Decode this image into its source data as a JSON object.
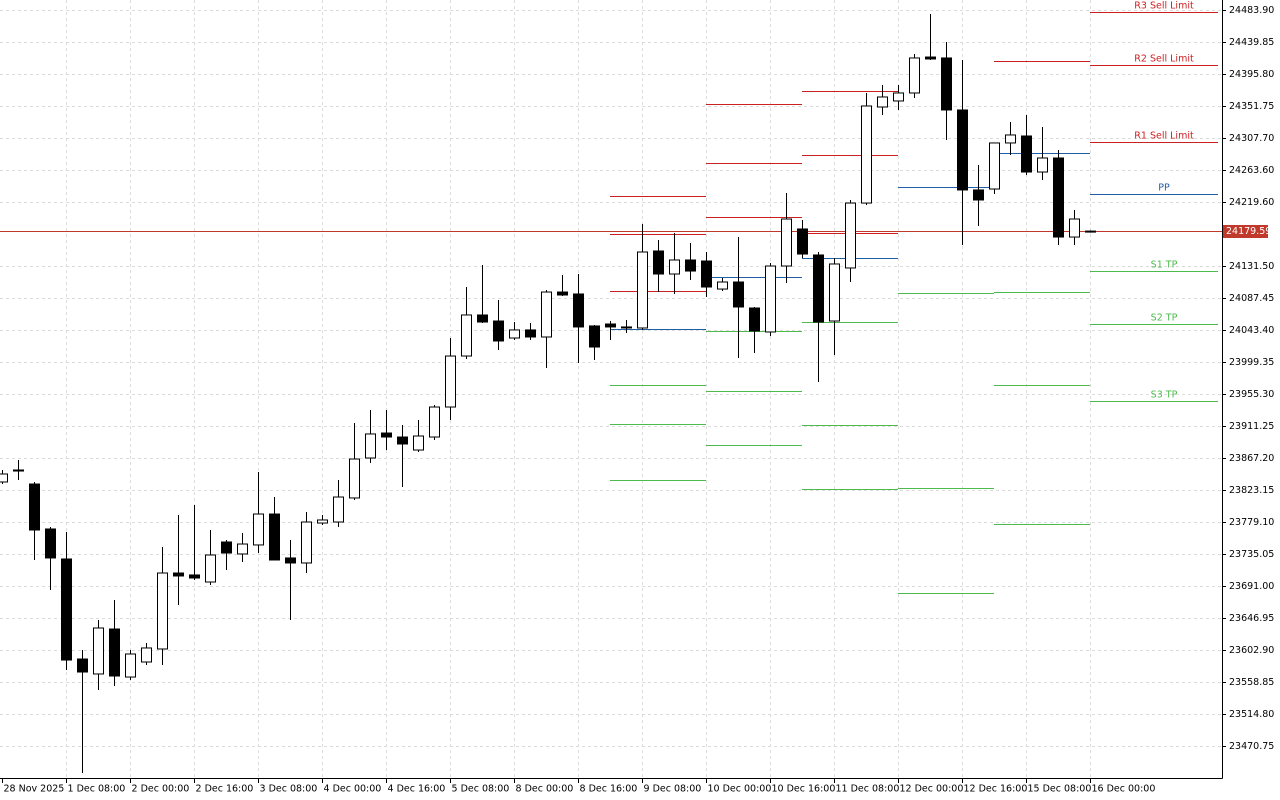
{
  "chart_data": {
    "type": "candlestick",
    "categories": [
      "28 Nov 2025",
      null,
      null,
      null,
      "1 Dec 08:00",
      null,
      null,
      null,
      "2 Dec 00:00",
      null,
      null,
      null,
      "2 Dec 16:00",
      null,
      null,
      null,
      "3 Dec 08:00",
      null,
      null,
      null,
      "4 Dec 00:00",
      null,
      null,
      null,
      "4 Dec 16:00",
      null,
      null,
      null,
      "5 Dec 08:00",
      null,
      null,
      null,
      "8 Dec 00:00",
      null,
      null,
      null,
      "8 Dec 16:00",
      null,
      null,
      null,
      "9 Dec 08:00",
      null,
      null,
      null,
      "10 Dec 00:00",
      null,
      null,
      null,
      "10 Dec 16:00",
      null,
      null,
      null,
      "11 Dec 08:00",
      null,
      null,
      null,
      "12 Dec 00:00",
      null,
      null,
      null,
      "12 Dec 16:00",
      null,
      null,
      null,
      "15 Dec 08:00",
      null,
      null,
      null,
      "16 Dec 00:00"
    ],
    "open": [
      23834.2,
      23850.7,
      23831.4,
      23769.5,
      23728.2,
      23590.5,
      23569.9,
      23631.8,
      23565.7,
      23586.4,
      23604.3,
      23708.9,
      23706.2,
      23696.5,
      23751.6,
      23735.1,
      23747.5,
      23790.1,
      23729.6,
      23722.7,
      23777.7,
      23779.1,
      23812.2,
      23867.2,
      23901.6,
      23896.1,
      23878.2,
      23896.1,
      23937.4,
      24007.6,
      24064.1,
      24055.8,
      24032.4,
      24043.5,
      24033.8,
      24095.7,
      24093.0,
      24049.0,
      24051.7,
      24047.6,
      24046.2,
      24152.2,
      24120.5,
      24139.8,
      24138.4,
      24099.8,
      24109.5,
      24073.7,
      24040.7,
      24131.5,
      24182.5,
      24146.7,
      24055.8,
      24128.8,
      24218.2,
      24350.4,
      24358.7,
      24369.7,
      24419.2,
      24417.9,
      24346.3,
      24236.2,
      24237.5,
      24300.9,
      24310.5,
      24260.9,
      24280.2,
      24171.4,
      24178.9
    ],
    "high": [
      23850.7,
      23864.5,
      23834.2,
      23772.2,
      23765.3,
      23602.9,
      23644.2,
      23671.7,
      23602.9,
      23612.5,
      23744.7,
      23788.8,
      23802.5,
      23768.1,
      23754.3,
      23764.0,
      23847.9,
      23813.5,
      23754.3,
      23792.9,
      23788.8,
      23836.9,
      23915.4,
      23933.3,
      23933.3,
      23912.7,
      23919.5,
      23940.2,
      24032.4,
      24102.6,
      24132.9,
      24084.8,
      24054.4,
      24053.1,
      24098.5,
      24119.1,
      24120.5,
      24050.3,
      24055.8,
      24057.2,
      24189.3,
      24167.3,
      24176.9,
      24163.2,
      24150.8,
      24115.0,
      24171.4,
      24075.1,
      24135.6,
      24232.0,
      24194.9,
      24150.8,
      24142.5,
      24222.4,
      24369.7,
      24380.7,
      24380.7,
      24423.4,
      24478.4,
      24439.9,
      24415.1,
      24270.6,
      24300.9,
      24329.8,
      24339.4,
      24322.9,
      24291.2,
      24208.6,
      24180.5
    ],
    "low": [
      23831.4,
      23836.9,
      23726.8,
      23685.5,
      23575.4,
      23433.6,
      23547.8,
      23553.3,
      23561.6,
      23582.3,
      23582.3,
      23664.9,
      23699.3,
      23692.4,
      23713.1,
      23724.1,
      23736.4,
      23726.8,
      23644.2,
      23708.9,
      23775.0,
      23772.2,
      23809.4,
      23860.3,
      23878.2,
      23827.3,
      23875.5,
      23892.0,
      23919.5,
      24003.5,
      24053.1,
      24015.9,
      24029.7,
      24029.7,
      23991.1,
      24090.2,
      23998.0,
      24002.1,
      24029.7,
      24039.3,
      24043.5,
      24095.7,
      24093.0,
      24112.2,
      24088.9,
      24097.1,
      24004.9,
      24011.8,
      24035.2,
      24108.1,
      24142.5,
      23971.8,
      24009.0,
      24109.5,
      24215.5,
      24339.4,
      24346.3,
      24362.8,
      24415.1,
      24305.0,
      24160.4,
      24186.6,
      24230.6,
      24284.3,
      24256.8,
      24249.9,
      24160.4,
      24160.4,
      24177.5
    ],
    "close": [
      23845.2,
      23849.3,
      23768.1,
      23729.6,
      23589.1,
      23572.6,
      23633.2,
      23567.1,
      23597.4,
      23605.7,
      23708.9,
      23704.8,
      23702.0,
      23733.7,
      23736.4,
      23748.8,
      23790.1,
      23726.8,
      23722.7,
      23779.1,
      23781.9,
      23813.5,
      23865.8,
      23900.3,
      23896.1,
      23886.5,
      23897.5,
      23937.4,
      24007.6,
      24064.1,
      24054.4,
      24028.3,
      24043.5,
      24033.8,
      24095.7,
      24091.6,
      24047.6,
      24020.0,
      24047.6,
      24046.2,
      24150.8,
      24120.5,
      24139.8,
      24124.6,
      24102.6,
      24109.5,
      24075.1,
      24042.1,
      24131.5,
      24196.2,
      24148.0,
      24054.4,
      24134.3,
      24218.2,
      24351.8,
      24364.2,
      24369.7,
      24417.9,
      24416.5,
      24346.3,
      24236.2,
      24222.4,
      24300.9,
      24311.9,
      24260.9,
      24280.2,
      24171.4,
      24196.2,
      24179.59
    ],
    "levels": [
      {
        "name": "R3 Sell Limit",
        "color": "#cc1f1f",
        "values": [
          null,
          null,
          null,
          null,
          null,
          null,
          null,
          null,
          null,
          null,
          null,
          null,
          null,
          null,
          null,
          null,
          null,
          null,
          null,
          null,
          null,
          null,
          null,
          null,
          null,
          null,
          null,
          null,
          null,
          null,
          null,
          null,
          null,
          null,
          null,
          null,
          null,
          null,
          24227.9,
          24227.9,
          24227.9,
          24227.9,
          24227.9,
          24227.9,
          24354.5,
          24354.5,
          24354.5,
          24354.5,
          24354.5,
          24354.5,
          24372.4,
          24372.4,
          24372.4,
          24372.4,
          24372.4,
          24372.4,
          null,
          null,
          null,
          null,
          null,
          null,
          null,
          null,
          null,
          null,
          null,
          null,
          24481.2
        ]
      },
      {
        "name": "R2 Sell Limit",
        "color": "#cc1f1f",
        "values": [
          null,
          null,
          null,
          null,
          null,
          null,
          null,
          null,
          null,
          null,
          null,
          null,
          null,
          null,
          null,
          null,
          null,
          null,
          null,
          null,
          null,
          null,
          null,
          null,
          null,
          null,
          null,
          null,
          null,
          null,
          null,
          null,
          null,
          null,
          null,
          null,
          null,
          null,
          24175.6,
          24175.6,
          24175.6,
          24175.6,
          24175.6,
          24175.6,
          24273.3,
          24273.3,
          24273.3,
          24273.3,
          24273.3,
          24273.3,
          24284.3,
          24284.3,
          24284.3,
          24284.3,
          24284.3,
          24284.3,
          null,
          null,
          null,
          null,
          null,
          null,
          null,
          null,
          null,
          null,
          null,
          null,
          24408.2
        ]
      },
      {
        "name": "R1 Sell Limit",
        "color": "#cc1f1f",
        "values": [
          null,
          null,
          null,
          null,
          null,
          null,
          null,
          null,
          null,
          null,
          null,
          null,
          null,
          null,
          null,
          null,
          null,
          null,
          null,
          null,
          null,
          null,
          null,
          null,
          null,
          null,
          null,
          null,
          null,
          null,
          null,
          null,
          null,
          null,
          null,
          null,
          null,
          null,
          24097.1,
          24097.1,
          24097.1,
          24097.1,
          24097.1,
          24097.1,
          24199.0,
          24199.0,
          24199.0,
          24199.0,
          24199.0,
          24199.0,
          24176.9,
          24176.9,
          24176.9,
          24176.9,
          24176.9,
          24176.9,
          null,
          null,
          null,
          null,
          null,
          null,
          24413.7,
          24413.7,
          24413.7,
          24413.7,
          24413.7,
          24413.7,
          24302.2
        ]
      },
      {
        "name": "PP",
        "color": "#1f5fa8",
        "values": [
          null,
          null,
          null,
          null,
          null,
          null,
          null,
          null,
          null,
          null,
          null,
          null,
          null,
          null,
          null,
          null,
          null,
          null,
          null,
          null,
          null,
          null,
          null,
          null,
          null,
          null,
          null,
          null,
          null,
          null,
          null,
          null,
          null,
          null,
          null,
          null,
          null,
          null,
          24044.8,
          24044.8,
          24044.8,
          24044.8,
          24044.8,
          24044.8,
          24116.4,
          24116.4,
          24116.4,
          24116.4,
          24116.4,
          24116.4,
          24142.5,
          24142.5,
          24142.5,
          24142.5,
          24142.5,
          24142.5,
          24240.3,
          24240.3,
          24240.3,
          24240.3,
          24240.3,
          24240.3,
          24287.1,
          24287.1,
          24287.1,
          24287.1,
          24287.1,
          24287.1,
          24230.6
        ]
      },
      {
        "name": "S1 TP",
        "color": "#4cbb4c",
        "values": [
          null,
          null,
          null,
          null,
          null,
          null,
          null,
          null,
          null,
          null,
          null,
          null,
          null,
          null,
          null,
          null,
          null,
          null,
          null,
          null,
          null,
          null,
          null,
          null,
          null,
          null,
          null,
          null,
          null,
          null,
          null,
          null,
          null,
          null,
          null,
          null,
          null,
          null,
          23967.7,
          23967.7,
          23967.7,
          23967.7,
          23967.7,
          23967.7,
          24042.1,
          24042.1,
          24042.1,
          24042.1,
          24042.1,
          24042.1,
          24054.4,
          24054.4,
          24054.4,
          24054.4,
          24054.4,
          24054.4,
          24094.3,
          24094.3,
          24094.3,
          24094.3,
          24094.3,
          24094.3,
          24095.7,
          24095.7,
          24095.7,
          24095.7,
          24095.7,
          24095.7,
          24124.6
        ]
      },
      {
        "name": "S2 TP",
        "color": "#4cbb4c",
        "values": [
          null,
          null,
          null,
          null,
          null,
          null,
          null,
          null,
          null,
          null,
          null,
          null,
          null,
          null,
          null,
          null,
          null,
          null,
          null,
          null,
          null,
          null,
          null,
          null,
          null,
          null,
          null,
          null,
          null,
          null,
          null,
          null,
          null,
          null,
          null,
          null,
          null,
          null,
          23914.0,
          23914.0,
          23914.0,
          23914.0,
          23914.0,
          23914.0,
          23959.4,
          23959.4,
          23959.4,
          23959.4,
          23959.4,
          23959.4,
          23912.7,
          23912.7,
          23912.7,
          23912.7,
          23912.7,
          23912.7,
          23825.9,
          23825.9,
          23825.9,
          23825.9,
          23825.9,
          23825.9,
          23967.7,
          23967.7,
          23967.7,
          23967.7,
          23967.7,
          23967.7,
          24051.7
        ]
      },
      {
        "name": "S3 TP",
        "color": "#4cbb4c",
        "values": [
          null,
          null,
          null,
          null,
          null,
          null,
          null,
          null,
          null,
          null,
          null,
          null,
          null,
          null,
          null,
          null,
          null,
          null,
          null,
          null,
          null,
          null,
          null,
          null,
          null,
          null,
          null,
          null,
          null,
          null,
          null,
          null,
          null,
          null,
          null,
          null,
          null,
          null,
          23836.9,
          23836.9,
          23836.9,
          23836.9,
          23836.9,
          23836.9,
          23885.1,
          23885.1,
          23885.1,
          23885.1,
          23885.1,
          23885.1,
          23824.5,
          23824.5,
          23824.5,
          23824.5,
          23824.5,
          23824.5,
          23681.4,
          23681.4,
          23681.4,
          23681.4,
          23681.4,
          23681.4,
          23776.4,
          23776.4,
          23776.4,
          23776.4,
          23776.4,
          23776.4,
          23945.7
        ]
      }
    ],
    "current_price": 24179.59,
    "current_price_color": "#c0392b",
    "ylim": [
      23426.7,
      24497.7
    ],
    "yticks": [
      {
        "value": 24483.9,
        "label": "24483.90"
      },
      24439.85,
      {
        "value": 24395.8,
        "label": "24395.80"
      },
      24351.75,
      {
        "value": 24307.7,
        "label": "24307.70"
      },
      {
        "value": 24263.6,
        "label": "24263.60"
      },
      {
        "value": 24219.6,
        "label": "24219.60"
      },
      {
        "value": 24131.5,
        "label": "24131.50"
      },
      24087.45,
      {
        "value": 24043.4,
        "label": "24043.40"
      },
      23999.35,
      {
        "value": 23955.3,
        "label": "23955.30"
      },
      23911.25,
      {
        "value": 23867.2,
        "label": "23867.20"
      },
      23823.15,
      {
        "value": 23779.1,
        "label": "23779.10"
      },
      23735.05,
      {
        "value": 23691.0,
        "label": "23691.00"
      },
      23646.95,
      {
        "value": 23602.9,
        "label": "23602.90"
      },
      23558.85,
      {
        "value": 23514.8,
        "label": "23514.80"
      },
      23470.75
    ],
    "grid": true
  }
}
